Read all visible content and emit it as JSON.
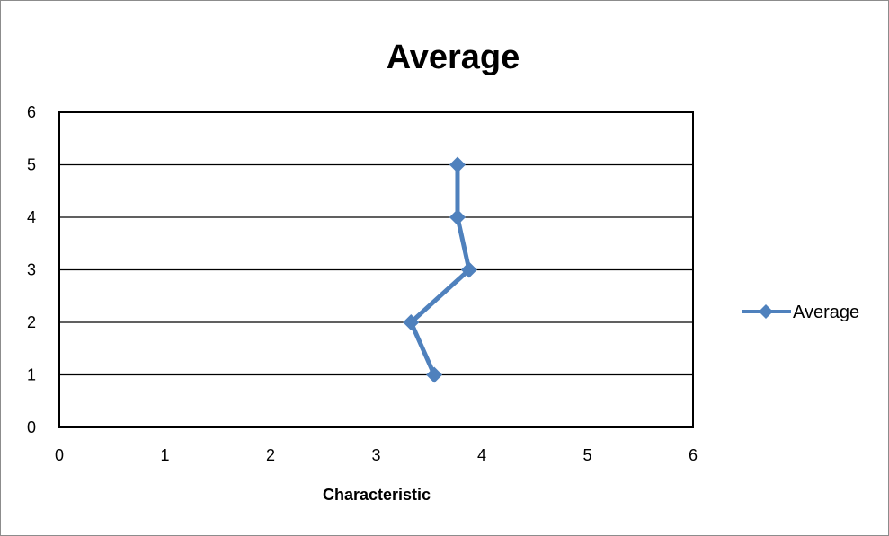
{
  "chart_data": {
    "type": "scatter",
    "title": "Average",
    "xlabel": "Characteristic",
    "ylabel": "",
    "xlim": [
      0,
      6
    ],
    "ylim": [
      0,
      6
    ],
    "x_ticks": [
      "0",
      "1",
      "2",
      "3",
      "4",
      "5",
      "6"
    ],
    "y_ticks": [
      "0",
      "1",
      "2",
      "3",
      "4",
      "5",
      "6"
    ],
    "grid": "horizontal",
    "legend": {
      "position": "right",
      "entries": [
        "Average"
      ]
    },
    "series": [
      {
        "name": "Average",
        "color": "#4f81bd",
        "marker": "diamond",
        "line": true,
        "points": [
          {
            "x": 3.55,
            "y": 1
          },
          {
            "x": 3.33,
            "y": 2
          },
          {
            "x": 3.88,
            "y": 3
          },
          {
            "x": 3.77,
            "y": 4
          },
          {
            "x": 3.77,
            "y": 5
          }
        ]
      }
    ]
  }
}
